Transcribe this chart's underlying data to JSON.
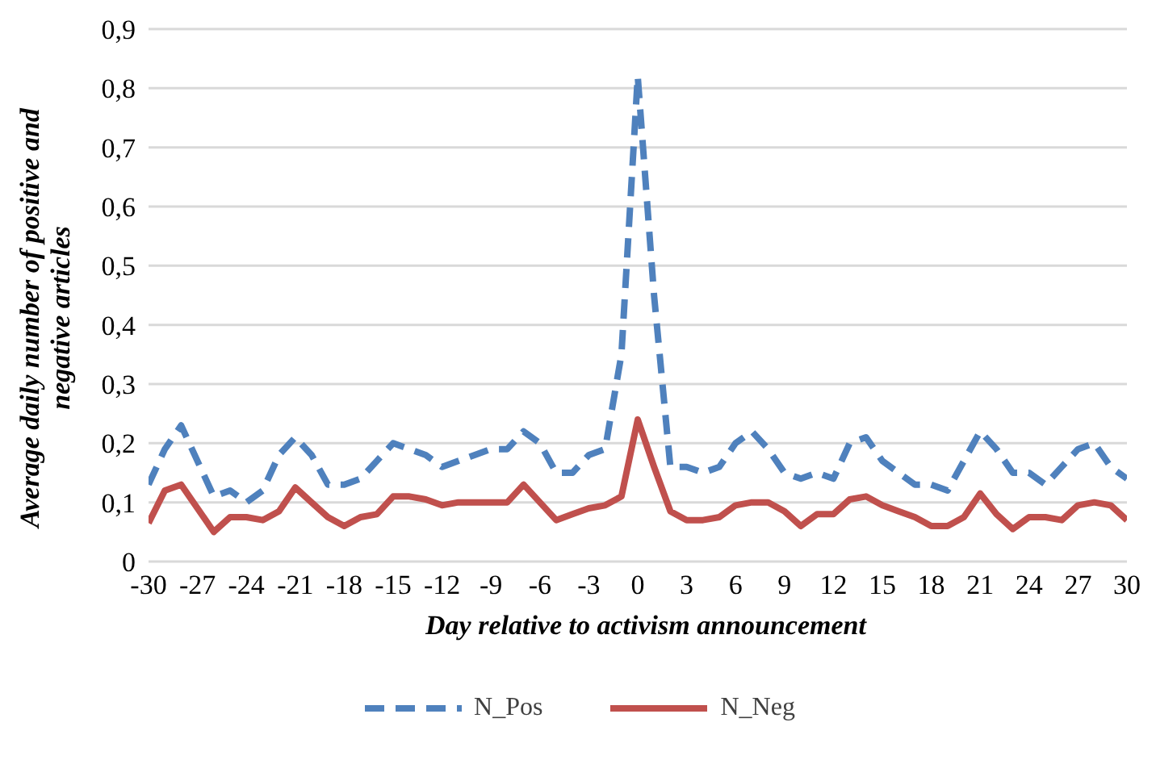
{
  "chart_data": {
    "type": "line",
    "xlabel": "Day relative to activism announcement",
    "ylabel": "Average daily number of positive and negative articles",
    "x": [
      -30,
      -29,
      -28,
      -27,
      -26,
      -25,
      -24,
      -23,
      -22,
      -21,
      -20,
      -19,
      -18,
      -17,
      -16,
      -15,
      -14,
      -13,
      -12,
      -11,
      -10,
      -9,
      -8,
      -7,
      -6,
      -5,
      -4,
      -3,
      -2,
      -1,
      0,
      1,
      2,
      3,
      4,
      5,
      6,
      7,
      8,
      9,
      10,
      11,
      12,
      13,
      14,
      15,
      16,
      17,
      18,
      19,
      20,
      21,
      22,
      23,
      24,
      25,
      26,
      27,
      28,
      29,
      30
    ],
    "series": [
      {
        "name": "N_Pos",
        "color": "#4f81bd",
        "line_style": "dashed",
        "values": [
          0.13,
          0.19,
          0.23,
          0.17,
          0.11,
          0.12,
          0.1,
          0.12,
          0.18,
          0.21,
          0.18,
          0.13,
          0.13,
          0.14,
          0.17,
          0.2,
          0.19,
          0.18,
          0.16,
          0.17,
          0.18,
          0.19,
          0.19,
          0.22,
          0.2,
          0.15,
          0.15,
          0.18,
          0.19,
          0.35,
          0.82,
          0.45,
          0.16,
          0.16,
          0.15,
          0.16,
          0.2,
          0.22,
          0.19,
          0.15,
          0.14,
          0.15,
          0.14,
          0.2,
          0.21,
          0.17,
          0.15,
          0.13,
          0.13,
          0.12,
          0.17,
          0.22,
          0.19,
          0.15,
          0.15,
          0.13,
          0.16,
          0.19,
          0.2,
          0.16,
          0.14
        ]
      },
      {
        "name": "N_Neg",
        "color": "#c0504d",
        "line_style": "solid",
        "values": [
          0.065,
          0.12,
          0.13,
          0.09,
          0.05,
          0.075,
          0.075,
          0.07,
          0.085,
          0.125,
          0.1,
          0.075,
          0.06,
          0.075,
          0.08,
          0.11,
          0.11,
          0.105,
          0.095,
          0.1,
          0.1,
          0.1,
          0.1,
          0.13,
          0.1,
          0.07,
          0.08,
          0.09,
          0.095,
          0.11,
          0.24,
          0.16,
          0.085,
          0.07,
          0.07,
          0.075,
          0.095,
          0.1,
          0.1,
          0.085,
          0.06,
          0.08,
          0.08,
          0.105,
          0.11,
          0.095,
          0.085,
          0.075,
          0.06,
          0.06,
          0.075,
          0.115,
          0.08,
          0.055,
          0.075,
          0.075,
          0.07,
          0.095,
          0.1,
          0.095,
          0.07
        ]
      }
    ],
    "xlim": [
      -30,
      30
    ],
    "xticks": [
      -30,
      -27,
      -24,
      -21,
      -18,
      -15,
      -12,
      -9,
      -6,
      -3,
      0,
      3,
      6,
      9,
      12,
      15,
      18,
      21,
      24,
      27,
      30
    ],
    "ylim": [
      0,
      0.9
    ],
    "yticks": [
      0,
      {
        "value": 0.1,
        "label": "0,1"
      },
      {
        "value": 0.2,
        "label": "0,2"
      },
      {
        "value": 0.3,
        "label": "0,3"
      },
      {
        "value": 0.4,
        "label": "0,4"
      },
      {
        "value": 0.5,
        "label": "0,5"
      },
      {
        "value": 0.6,
        "label": "0,6"
      },
      {
        "value": 0.7,
        "label": "0,7"
      },
      {
        "value": 0.8,
        "label": "0,8"
      },
      {
        "value": 0.9,
        "label": "0,9"
      }
    ],
    "grid": "y",
    "legend": "bottom",
    "marker": "none"
  }
}
